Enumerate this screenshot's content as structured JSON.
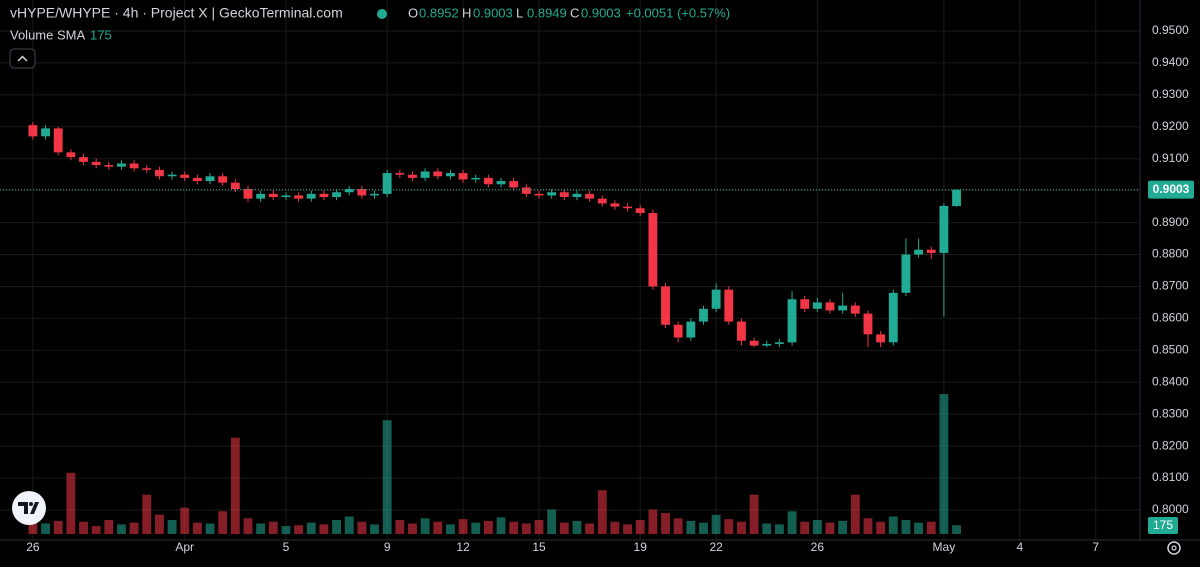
{
  "chart_data": {
    "type": "candlestick",
    "title": "vHYPE/WHYPE · 4h · Project X | GeckoTerminal.com",
    "ohlc_labels": [
      "O",
      "H",
      "L",
      "C"
    ],
    "change": "+0.0051 (+0.57%)",
    "volume_label": "Volume",
    "sma_label": "SMA",
    "volume_sma": 175,
    "up_color": "#22ab94",
    "down_color": "#f23645",
    "grid": true,
    "x": [
      0,
      0.5,
      1,
      1.5,
      2,
      2.5,
      3,
      3.5,
      4,
      4.5,
      5,
      5.5,
      6,
      6.5,
      7,
      7.5,
      8,
      8.5,
      9,
      9.5,
      10,
      10.5,
      11,
      11.5,
      12,
      12.5,
      13,
      13.5,
      14,
      14.5,
      15,
      15.5,
      16,
      16.5,
      17,
      17.5,
      18,
      18.5,
      19,
      19.5,
      20,
      20.5,
      21,
      21.5,
      22,
      22.5,
      23,
      23.5,
      24,
      24.5,
      25,
      25.5,
      26,
      26.5,
      27,
      27.5,
      28,
      28.5,
      29,
      29.5,
      30,
      30.5,
      31,
      31.5,
      32,
      32.5,
      33,
      33.5,
      34,
      34.5,
      35,
      35.5,
      36,
      36.5
    ],
    "open": [
      0.9205,
      0.917,
      0.9195,
      0.912,
      0.9105,
      0.909,
      0.908,
      0.9075,
      0.9085,
      0.907,
      0.9065,
      0.9045,
      0.905,
      0.904,
      0.903,
      0.9045,
      0.9025,
      0.9005,
      0.8975,
      0.899,
      0.898,
      0.8985,
      0.8975,
      0.899,
      0.898,
      0.8995,
      0.9005,
      0.8985,
      0.899,
      0.9055,
      0.905,
      0.904,
      0.906,
      0.9045,
      0.9055,
      0.9035,
      0.904,
      0.902,
      0.903,
      0.901,
      0.899,
      0.8985,
      0.8995,
      0.898,
      0.899,
      0.8975,
      0.896,
      0.895,
      0.8945,
      0.893,
      0.87,
      0.858,
      0.854,
      0.859,
      0.863,
      0.869,
      0.859,
      0.853,
      0.8515,
      0.852,
      0.8525,
      0.866,
      0.863,
      0.865,
      0.8625,
      0.864,
      0.8615,
      0.855,
      0.8525,
      0.868,
      0.88,
      0.8815,
      0.8805,
      0.8952
    ],
    "high": [
      0.9215,
      0.9205,
      0.92,
      0.913,
      0.9115,
      0.91,
      0.909,
      0.9095,
      0.9095,
      0.908,
      0.9075,
      0.906,
      0.906,
      0.905,
      0.9055,
      0.9055,
      0.9035,
      0.9015,
      0.9,
      0.9,
      0.8995,
      0.8995,
      0.9,
      0.9,
      0.9005,
      0.9015,
      0.9015,
      0.9,
      0.9065,
      0.9065,
      0.906,
      0.907,
      0.907,
      0.9065,
      0.9065,
      0.905,
      0.905,
      0.904,
      0.904,
      0.902,
      0.9,
      0.9005,
      0.9005,
      0.9,
      0.9,
      0.8985,
      0.897,
      0.896,
      0.8955,
      0.894,
      0.871,
      0.859,
      0.86,
      0.864,
      0.871,
      0.87,
      0.86,
      0.854,
      0.853,
      0.8535,
      0.8685,
      0.867,
      0.8665,
      0.866,
      0.868,
      0.865,
      0.8625,
      0.856,
      0.869,
      0.885,
      0.885,
      0.8825,
      0.896,
      0.9003
    ],
    "low": [
      0.916,
      0.916,
      0.911,
      0.9095,
      0.908,
      0.907,
      0.9065,
      0.9065,
      0.906,
      0.9055,
      0.9035,
      0.9035,
      0.903,
      0.902,
      0.902,
      0.9015,
      0.8995,
      0.8965,
      0.8965,
      0.897,
      0.897,
      0.8965,
      0.8965,
      0.897,
      0.897,
      0.8985,
      0.8975,
      0.8975,
      0.898,
      0.904,
      0.903,
      0.903,
      0.9035,
      0.9035,
      0.9025,
      0.9025,
      0.901,
      0.901,
      0.9,
      0.898,
      0.8975,
      0.8975,
      0.897,
      0.897,
      0.8965,
      0.895,
      0.894,
      0.8935,
      0.892,
      0.869,
      0.857,
      0.8525,
      0.853,
      0.858,
      0.862,
      0.858,
      0.8515,
      0.851,
      0.851,
      0.851,
      0.8515,
      0.862,
      0.862,
      0.8615,
      0.8615,
      0.8605,
      0.851,
      0.851,
      0.8515,
      0.867,
      0.879,
      0.8785,
      0.8605,
      0.8949
    ],
    "close": [
      0.917,
      0.9195,
      0.912,
      0.9105,
      0.909,
      0.908,
      0.9075,
      0.9085,
      0.907,
      0.9065,
      0.9045,
      0.905,
      0.904,
      0.903,
      0.9045,
      0.9025,
      0.9005,
      0.8975,
      0.899,
      0.898,
      0.8985,
      0.8975,
      0.899,
      0.898,
      0.8995,
      0.9005,
      0.8985,
      0.899,
      0.9055,
      0.905,
      0.904,
      0.906,
      0.9045,
      0.9055,
      0.9035,
      0.904,
      0.902,
      0.903,
      0.901,
      0.899,
      0.8985,
      0.8995,
      0.898,
      0.899,
      0.8975,
      0.896,
      0.895,
      0.8945,
      0.893,
      0.87,
      0.858,
      0.854,
      0.859,
      0.863,
      0.869,
      0.859,
      0.853,
      0.8515,
      0.852,
      0.8525,
      0.866,
      0.863,
      0.865,
      0.8625,
      0.864,
      0.8615,
      0.855,
      0.8525,
      0.868,
      0.88,
      0.8815,
      0.8805,
      0.8952,
      0.9003
    ],
    "volume": [
      180,
      120,
      150,
      700,
      140,
      90,
      160,
      110,
      130,
      450,
      220,
      160,
      300,
      130,
      120,
      260,
      1100,
      180,
      120,
      140,
      90,
      100,
      130,
      110,
      160,
      200,
      140,
      110,
      1300,
      160,
      120,
      180,
      140,
      110,
      170,
      130,
      150,
      190,
      140,
      120,
      160,
      280,
      130,
      150,
      120,
      500,
      140,
      110,
      160,
      280,
      240,
      180,
      150,
      130,
      220,
      170,
      140,
      450,
      120,
      110,
      260,
      140,
      160,
      130,
      150,
      450,
      180,
      140,
      200,
      160,
      130,
      140,
      1600,
      100
    ],
    "xlim": [
      -1.3,
      43.75
    ],
    "xticks": [
      {
        "value": 0,
        "label": "26"
      },
      {
        "value": 6,
        "label": "Apr"
      },
      {
        "value": 10,
        "label": "5"
      },
      {
        "value": 14,
        "label": "9"
      },
      {
        "value": 17,
        "label": "12"
      },
      {
        "value": 20,
        "label": "15"
      },
      {
        "value": 24,
        "label": "19"
      },
      {
        "value": 27,
        "label": "22"
      },
      {
        "value": 31,
        "label": "26"
      },
      {
        "value": 36,
        "label": "May"
      },
      {
        "value": 39,
        "label": "4"
      },
      {
        "value": 42,
        "label": "7"
      }
    ],
    "ylim": [
      0.7906,
      0.9597
    ],
    "yticks": [
      {
        "value": 0.8,
        "label": "0.8000"
      },
      {
        "value": 0.81,
        "label": "0.8100"
      },
      {
        "value": 0.82,
        "label": "0.8200"
      },
      {
        "value": 0.83,
        "label": "0.8300"
      },
      {
        "value": 0.84,
        "label": "0.8400"
      },
      {
        "value": 0.85,
        "label": "0.8500"
      },
      {
        "value": 0.86,
        "label": "0.8600"
      },
      {
        "value": 0.87,
        "label": "0.8700"
      },
      {
        "value": 0.88,
        "label": "0.8800"
      },
      {
        "value": 0.89,
        "label": "0.8900"
      },
      {
        "value": 0.9,
        "label": "0.9000"
      },
      {
        "value": 0.91,
        "label": "0.9100"
      },
      {
        "value": 0.92,
        "label": "0.9200"
      },
      {
        "value": 0.93,
        "label": "0.9300"
      },
      {
        "value": 0.94,
        "label": "0.9400"
      },
      {
        "value": 0.95,
        "label": "0.9500"
      }
    ]
  }
}
